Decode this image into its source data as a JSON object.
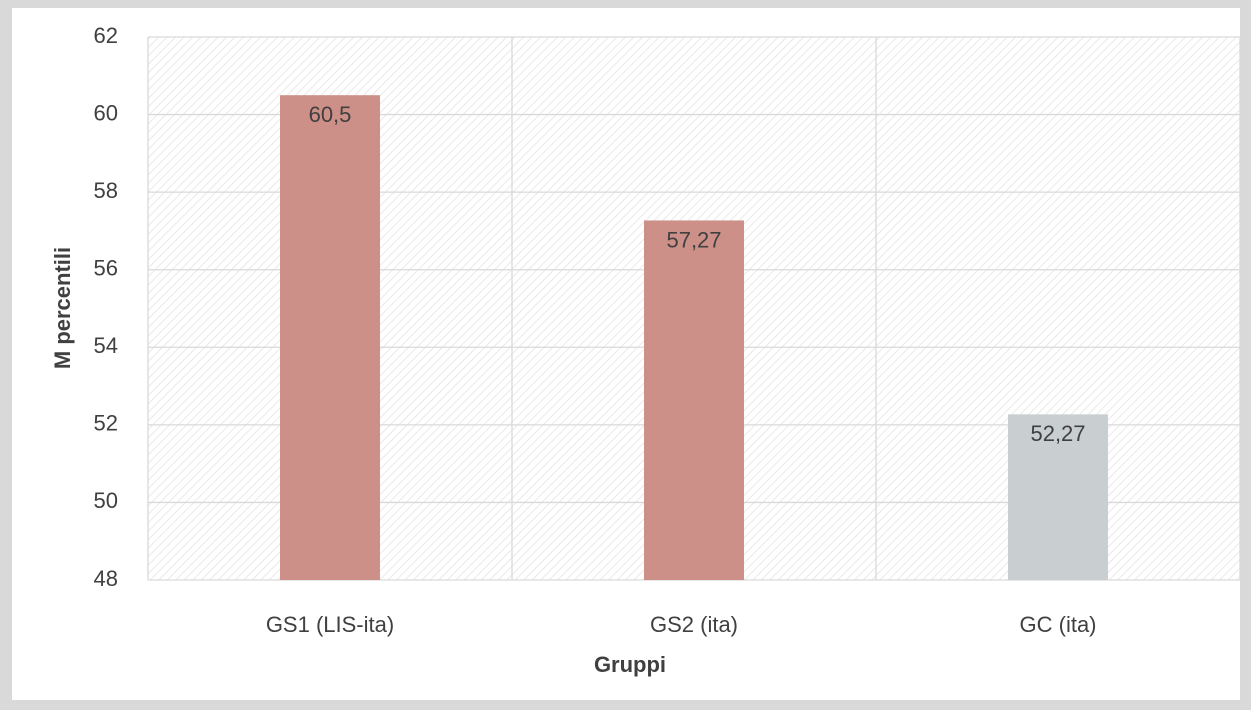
{
  "chart_data": {
    "type": "bar",
    "categories": [
      "GS1 (LIS-ita)",
      "GS2 (ita)",
      "GC (ita)"
    ],
    "values": [
      60.5,
      57.27,
      52.27
    ],
    "value_labels": [
      "60,5",
      "57,27",
      "52,27"
    ],
    "colors": [
      "#cd9088",
      "#cd9088",
      "#c9ced1"
    ],
    "ylim": [
      48,
      62
    ],
    "yticks": [
      48,
      50,
      52,
      54,
      56,
      58,
      60,
      62
    ],
    "ylabel": "M percentili",
    "xlabel": "Gruppi",
    "grid": true
  }
}
